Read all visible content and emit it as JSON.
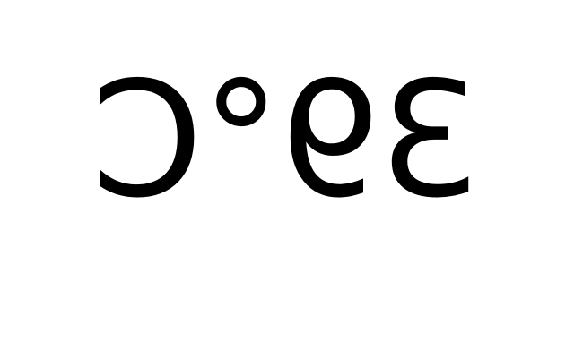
{
  "display": {
    "temperature_text": "39°C",
    "orientation": "mirrored-horizontally",
    "text_color": "#000000",
    "background_color": "#ffffff"
  }
}
